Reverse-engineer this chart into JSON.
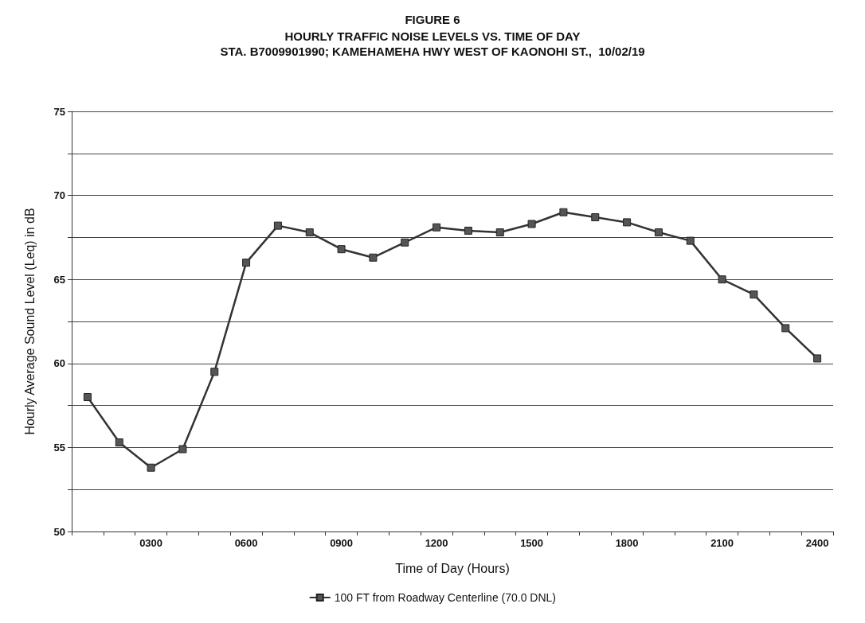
{
  "chart_data": {
    "type": "line",
    "title": "FIGURE 6",
    "subtitle": "HOURLY TRAFFIC NOISE LEVELS VS. TIME OF DAY\nSTA. B7009901990; KAMEHAMEHA HWY WEST OF KAONOHI ST.,  10/02/19",
    "xlabel": "Time of Day (Hours)",
    "ylabel": "Hourly Average Sound Level (Leq) in dB",
    "categories": [
      null,
      null,
      "0300",
      null,
      null,
      "0600",
      null,
      null,
      "0900",
      null,
      null,
      "1200",
      null,
      null,
      "1500",
      null,
      null,
      "1800",
      null,
      null,
      "2100",
      null,
      null,
      "2400"
    ],
    "series": [
      {
        "name": "100 FT from Roadway Centerline (70.0 DNL)",
        "color": "#333333",
        "values": [
          58.0,
          55.3,
          53.8,
          54.9,
          59.5,
          66.0,
          68.2,
          67.8,
          66.8,
          66.3,
          67.2,
          68.1,
          67.9,
          67.8,
          68.3,
          69.0,
          68.7,
          68.4,
          67.8,
          67.3,
          65.0,
          64.1,
          62.1,
          60.3
        ]
      }
    ],
    "ylim": [
      50,
      75
    ],
    "yticks": [
      50,
      {
        "value": 52.5,
        "label": null
      },
      55,
      {
        "value": 57.5,
        "label": null
      },
      60,
      {
        "value": 62.5,
        "label": null
      },
      65,
      {
        "value": 67.5,
        "label": null
      },
      70,
      {
        "value": 72.5,
        "label": null
      },
      75
    ],
    "grid": "y",
    "legend": "bottom",
    "marker": "square",
    "line_style": "solid"
  }
}
